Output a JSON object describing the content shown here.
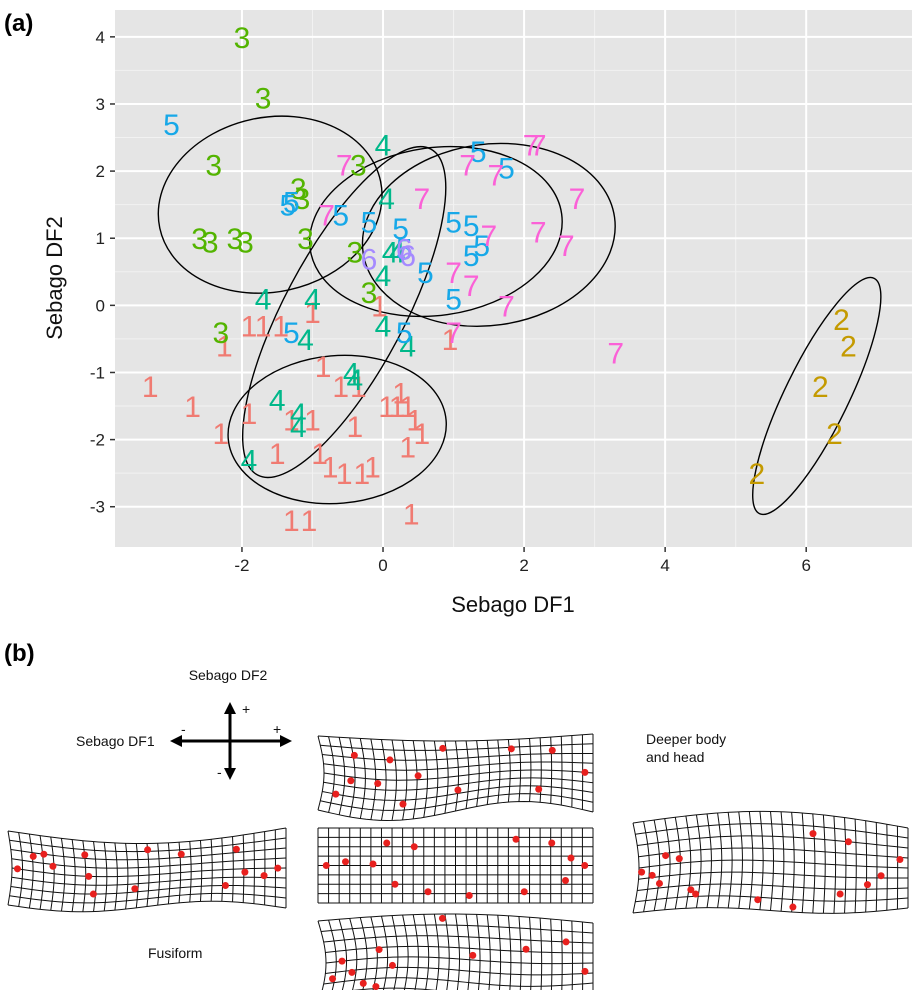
{
  "panel_a_label": "(a)",
  "panel_b_label": "(b)",
  "chart_data": {
    "type": "scatter",
    "xlabel": "Sebago DF1",
    "ylabel": "Sebago DF2",
    "xlim": [
      -3.8,
      7.5
    ],
    "ylim": [
      -3.6,
      4.4
    ],
    "x_ticks": [
      -2,
      0,
      2,
      4,
      6
    ],
    "y_ticks": [
      -3,
      -2,
      -1,
      0,
      1,
      2,
      3,
      4
    ],
    "grid": true,
    "background": "#e5e5e5",
    "colors": {
      "1": "#f07b72",
      "2": "#c49a00",
      "3": "#53b400",
      "4": "#00b88a",
      "5": "#17a8e8",
      "6": "#a58aff",
      "7": "#fb61d7"
    },
    "series": [
      {
        "label": "1",
        "points": [
          [
            -3.3,
            -1.2
          ],
          [
            -2.7,
            -1.5
          ],
          [
            -2.3,
            -1.9
          ],
          [
            -2.25,
            -0.6
          ],
          [
            -1.9,
            -0.3
          ],
          [
            -1.7,
            -0.3
          ],
          [
            -1.45,
            -0.3
          ],
          [
            -1.9,
            -1.6
          ],
          [
            -1.5,
            -2.2
          ],
          [
            -1.3,
            -1.7
          ],
          [
            -1.0,
            -1.7
          ],
          [
            -0.85,
            -0.9
          ],
          [
            -1.0,
            -0.1
          ],
          [
            -0.6,
            -1.2
          ],
          [
            -0.4,
            -1.8
          ],
          [
            -0.9,
            -2.2
          ],
          [
            -0.75,
            -2.4
          ],
          [
            -0.55,
            -2.5
          ],
          [
            -0.3,
            -2.5
          ],
          [
            -0.15,
            -2.4
          ],
          [
            -0.35,
            -1.2
          ],
          [
            -0.05,
            0.0
          ],
          [
            0.05,
            -1.5
          ],
          [
            0.2,
            -1.5
          ],
          [
            0.25,
            -1.3
          ],
          [
            0.35,
            -1.5
          ],
          [
            0.45,
            -1.7
          ],
          [
            0.55,
            -1.9
          ],
          [
            0.35,
            -2.1
          ],
          [
            0.4,
            -3.1
          ],
          [
            -1.3,
            -3.2
          ],
          [
            -1.05,
            -3.2
          ],
          [
            0.95,
            -0.5
          ]
        ]
      },
      {
        "label": "2",
        "points": [
          [
            5.3,
            -2.5
          ],
          [
            6.2,
            -1.2
          ],
          [
            6.4,
            -1.9
          ],
          [
            6.6,
            -0.6
          ],
          [
            6.5,
            -0.2
          ]
        ]
      },
      {
        "label": "3",
        "points": [
          [
            -2.0,
            4.0
          ],
          [
            -1.7,
            3.1
          ],
          [
            -2.4,
            2.1
          ],
          [
            -2.6,
            1.0
          ],
          [
            -2.45,
            0.95
          ],
          [
            -2.1,
            1.0
          ],
          [
            -1.95,
            0.95
          ],
          [
            -1.1,
            1.0
          ],
          [
            -1.15,
            1.6
          ],
          [
            -1.2,
            1.75
          ],
          [
            -0.4,
            0.8
          ],
          [
            -0.35,
            2.1
          ],
          [
            -0.2,
            0.2
          ],
          [
            -2.3,
            -0.4
          ]
        ]
      },
      {
        "label": "4",
        "points": [
          [
            -1.7,
            0.1
          ],
          [
            -1.1,
            -0.5
          ],
          [
            -1.5,
            -1.4
          ],
          [
            -1.2,
            -1.6
          ],
          [
            -1.2,
            -1.8
          ],
          [
            -1.9,
            -2.3
          ],
          [
            -1.0,
            0.1
          ],
          [
            0.0,
            2.4
          ],
          [
            0.05,
            1.6
          ],
          [
            0.1,
            0.8
          ],
          [
            0.2,
            0.8
          ],
          [
            0.0,
            0.45
          ],
          [
            0.0,
            -0.3
          ],
          [
            0.35,
            -0.6
          ],
          [
            -0.45,
            -1.0
          ],
          [
            -0.4,
            -1.1
          ]
        ]
      },
      {
        "label": "5",
        "points": [
          [
            -3.0,
            2.7
          ],
          [
            -1.35,
            1.5
          ],
          [
            -1.3,
            1.55
          ],
          [
            -0.6,
            1.35
          ],
          [
            -0.2,
            1.25
          ],
          [
            0.25,
            1.15
          ],
          [
            0.3,
            0.85
          ],
          [
            0.6,
            0.5
          ],
          [
            1.0,
            1.25
          ],
          [
            1.25,
            1.2
          ],
          [
            1.4,
            0.9
          ],
          [
            1.35,
            2.3
          ],
          [
            1.75,
            2.05
          ],
          [
            1.25,
            0.75
          ],
          [
            1.0,
            0.1
          ],
          [
            0.3,
            -0.4
          ],
          [
            -1.3,
            -0.4
          ]
        ]
      },
      {
        "label": "6",
        "points": [
          [
            -0.2,
            0.7
          ],
          [
            0.3,
            0.85
          ],
          [
            0.35,
            0.75
          ]
        ]
      },
      {
        "label": "7",
        "points": [
          [
            -0.55,
            2.1
          ],
          [
            -0.8,
            1.35
          ],
          [
            0.55,
            1.6
          ],
          [
            1.2,
            2.1
          ],
          [
            1.5,
            1.05
          ],
          [
            1.6,
            1.95
          ],
          [
            2.1,
            2.4
          ],
          [
            2.2,
            2.4
          ],
          [
            2.2,
            1.1
          ],
          [
            2.75,
            1.6
          ],
          [
            2.6,
            0.9
          ],
          [
            1.0,
            0.5
          ],
          [
            1.25,
            0.3
          ],
          [
            1.75,
            0.0
          ],
          [
            1.0,
            -0.4
          ],
          [
            3.3,
            -0.7
          ]
        ]
      }
    ],
    "ellipses": [
      {
        "group": "3",
        "cx": -1.6,
        "cy": 1.5,
        "rx": 1.6,
        "ry": 1.3,
        "angle": -12
      },
      {
        "group": "4",
        "cx": -0.55,
        "cy": -0.1,
        "rx": 0.85,
        "ry": 2.75,
        "angle": 28
      },
      {
        "group": "1",
        "cx": -0.65,
        "cy": -1.85,
        "rx": 1.55,
        "ry": 1.1,
        "angle": -5
      },
      {
        "group": "5",
        "cx": 0.75,
        "cy": 1.1,
        "rx": 1.8,
        "ry": 1.25,
        "angle": -8
      },
      {
        "group": "7",
        "cx": 1.5,
        "cy": 1.05,
        "rx": 1.8,
        "ry": 1.35,
        "angle": -8
      },
      {
        "group": "2",
        "cx": 6.15,
        "cy": -1.35,
        "rx": 0.45,
        "ry": 1.95,
        "angle": 26
      }
    ]
  },
  "panel_b": {
    "axis_caption_df2": "Sebago DF2",
    "axis_caption_df1": "Sebago DF1",
    "plus_top": "+",
    "minus_bottom": "-",
    "plus_right": "+",
    "minus_left": "-",
    "caption_deeper": [
      "Deeper body",
      "and head"
    ],
    "caption_fusiform": "Fusiform",
    "grid_color": "#111111",
    "landmark_color": "#e8201e"
  }
}
